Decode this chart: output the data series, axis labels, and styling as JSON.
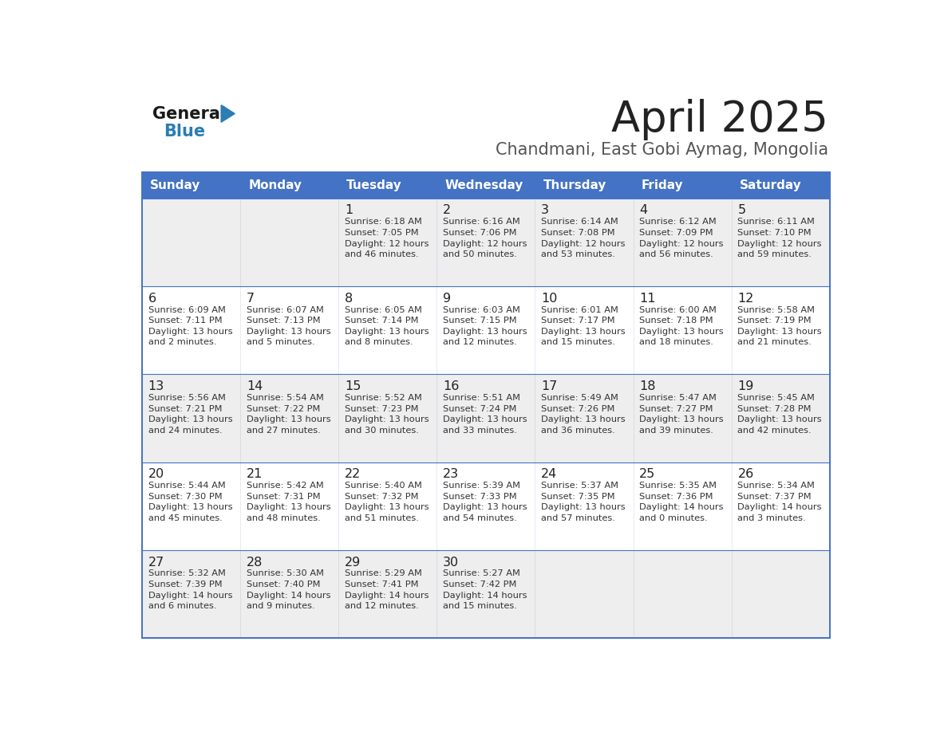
{
  "title": "April 2025",
  "subtitle": "Chandmani, East Gobi Aymag, Mongolia",
  "header_bg_color": "#4472C4",
  "header_text_color": "#FFFFFF",
  "row_bg_odd": "#EEEEEE",
  "row_bg_even": "#FFFFFF",
  "day_names": [
    "Sunday",
    "Monday",
    "Tuesday",
    "Wednesday",
    "Thursday",
    "Friday",
    "Saturday"
  ],
  "title_color": "#222222",
  "subtitle_color": "#555555",
  "day_num_color": "#222222",
  "cell_text_color": "#333333",
  "border_color": "#4472C4",
  "logo_general_color": "#1a1a1a",
  "logo_blue_color": "#2A7DB5",
  "calendar": [
    [
      {
        "day": "",
        "info": ""
      },
      {
        "day": "",
        "info": ""
      },
      {
        "day": "1",
        "info": "Sunrise: 6:18 AM\nSunset: 7:05 PM\nDaylight: 12 hours\nand 46 minutes."
      },
      {
        "day": "2",
        "info": "Sunrise: 6:16 AM\nSunset: 7:06 PM\nDaylight: 12 hours\nand 50 minutes."
      },
      {
        "day": "3",
        "info": "Sunrise: 6:14 AM\nSunset: 7:08 PM\nDaylight: 12 hours\nand 53 minutes."
      },
      {
        "day": "4",
        "info": "Sunrise: 6:12 AM\nSunset: 7:09 PM\nDaylight: 12 hours\nand 56 minutes."
      },
      {
        "day": "5",
        "info": "Sunrise: 6:11 AM\nSunset: 7:10 PM\nDaylight: 12 hours\nand 59 minutes."
      }
    ],
    [
      {
        "day": "6",
        "info": "Sunrise: 6:09 AM\nSunset: 7:11 PM\nDaylight: 13 hours\nand 2 minutes."
      },
      {
        "day": "7",
        "info": "Sunrise: 6:07 AM\nSunset: 7:13 PM\nDaylight: 13 hours\nand 5 minutes."
      },
      {
        "day": "8",
        "info": "Sunrise: 6:05 AM\nSunset: 7:14 PM\nDaylight: 13 hours\nand 8 minutes."
      },
      {
        "day": "9",
        "info": "Sunrise: 6:03 AM\nSunset: 7:15 PM\nDaylight: 13 hours\nand 12 minutes."
      },
      {
        "day": "10",
        "info": "Sunrise: 6:01 AM\nSunset: 7:17 PM\nDaylight: 13 hours\nand 15 minutes."
      },
      {
        "day": "11",
        "info": "Sunrise: 6:00 AM\nSunset: 7:18 PM\nDaylight: 13 hours\nand 18 minutes."
      },
      {
        "day": "12",
        "info": "Sunrise: 5:58 AM\nSunset: 7:19 PM\nDaylight: 13 hours\nand 21 minutes."
      }
    ],
    [
      {
        "day": "13",
        "info": "Sunrise: 5:56 AM\nSunset: 7:21 PM\nDaylight: 13 hours\nand 24 minutes."
      },
      {
        "day": "14",
        "info": "Sunrise: 5:54 AM\nSunset: 7:22 PM\nDaylight: 13 hours\nand 27 minutes."
      },
      {
        "day": "15",
        "info": "Sunrise: 5:52 AM\nSunset: 7:23 PM\nDaylight: 13 hours\nand 30 minutes."
      },
      {
        "day": "16",
        "info": "Sunrise: 5:51 AM\nSunset: 7:24 PM\nDaylight: 13 hours\nand 33 minutes."
      },
      {
        "day": "17",
        "info": "Sunrise: 5:49 AM\nSunset: 7:26 PM\nDaylight: 13 hours\nand 36 minutes."
      },
      {
        "day": "18",
        "info": "Sunrise: 5:47 AM\nSunset: 7:27 PM\nDaylight: 13 hours\nand 39 minutes."
      },
      {
        "day": "19",
        "info": "Sunrise: 5:45 AM\nSunset: 7:28 PM\nDaylight: 13 hours\nand 42 minutes."
      }
    ],
    [
      {
        "day": "20",
        "info": "Sunrise: 5:44 AM\nSunset: 7:30 PM\nDaylight: 13 hours\nand 45 minutes."
      },
      {
        "day": "21",
        "info": "Sunrise: 5:42 AM\nSunset: 7:31 PM\nDaylight: 13 hours\nand 48 minutes."
      },
      {
        "day": "22",
        "info": "Sunrise: 5:40 AM\nSunset: 7:32 PM\nDaylight: 13 hours\nand 51 minutes."
      },
      {
        "day": "23",
        "info": "Sunrise: 5:39 AM\nSunset: 7:33 PM\nDaylight: 13 hours\nand 54 minutes."
      },
      {
        "day": "24",
        "info": "Sunrise: 5:37 AM\nSunset: 7:35 PM\nDaylight: 13 hours\nand 57 minutes."
      },
      {
        "day": "25",
        "info": "Sunrise: 5:35 AM\nSunset: 7:36 PM\nDaylight: 14 hours\nand 0 minutes."
      },
      {
        "day": "26",
        "info": "Sunrise: 5:34 AM\nSunset: 7:37 PM\nDaylight: 14 hours\nand 3 minutes."
      }
    ],
    [
      {
        "day": "27",
        "info": "Sunrise: 5:32 AM\nSunset: 7:39 PM\nDaylight: 14 hours\nand 6 minutes."
      },
      {
        "day": "28",
        "info": "Sunrise: 5:30 AM\nSunset: 7:40 PM\nDaylight: 14 hours\nand 9 minutes."
      },
      {
        "day": "29",
        "info": "Sunrise: 5:29 AM\nSunset: 7:41 PM\nDaylight: 14 hours\nand 12 minutes."
      },
      {
        "day": "30",
        "info": "Sunrise: 5:27 AM\nSunset: 7:42 PM\nDaylight: 14 hours\nand 15 minutes."
      },
      {
        "day": "",
        "info": ""
      },
      {
        "day": "",
        "info": ""
      },
      {
        "day": "",
        "info": ""
      }
    ]
  ]
}
